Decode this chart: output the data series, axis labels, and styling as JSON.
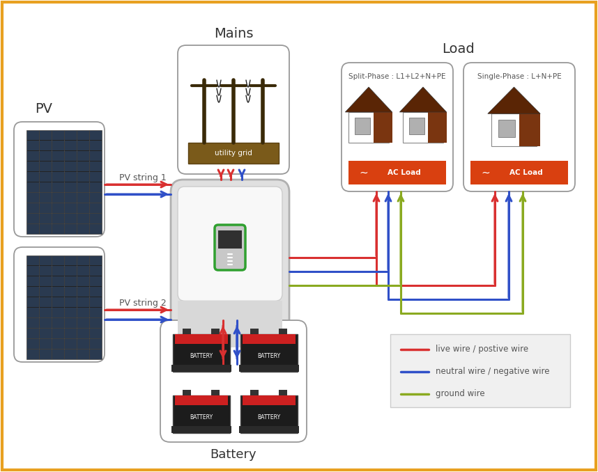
{
  "bg_color": "#ffffff",
  "border_color": "#e8a020",
  "pv_label": "PV",
  "mains_label": "Mains",
  "load_label": "Load",
  "battery_label": "Battery",
  "pv_string1": "PV string 1",
  "pv_string2": "PV string 2",
  "split_phase_label": "Split-Phase : L1+L2+N+PE",
  "single_phase_label": "Single-Phase : L+N+PE",
  "ac_load_label": "AC Load",
  "utility_grid_label": "utility grid",
  "battery_cell_label": "BATTERY",
  "legend_items": [
    {
      "color": "#d93030",
      "label": "live wire / postive wire"
    },
    {
      "color": "#3050c8",
      "label": "neutral wire / negative wire"
    },
    {
      "color": "#8aaa20",
      "label": "ground wire"
    }
  ],
  "red": "#d93030",
  "blue": "#3050c8",
  "green": "#8aaa20",
  "brown_roof": "#5a2505",
  "brown_pole": "#7a5520",
  "orange_load": "#d94010"
}
